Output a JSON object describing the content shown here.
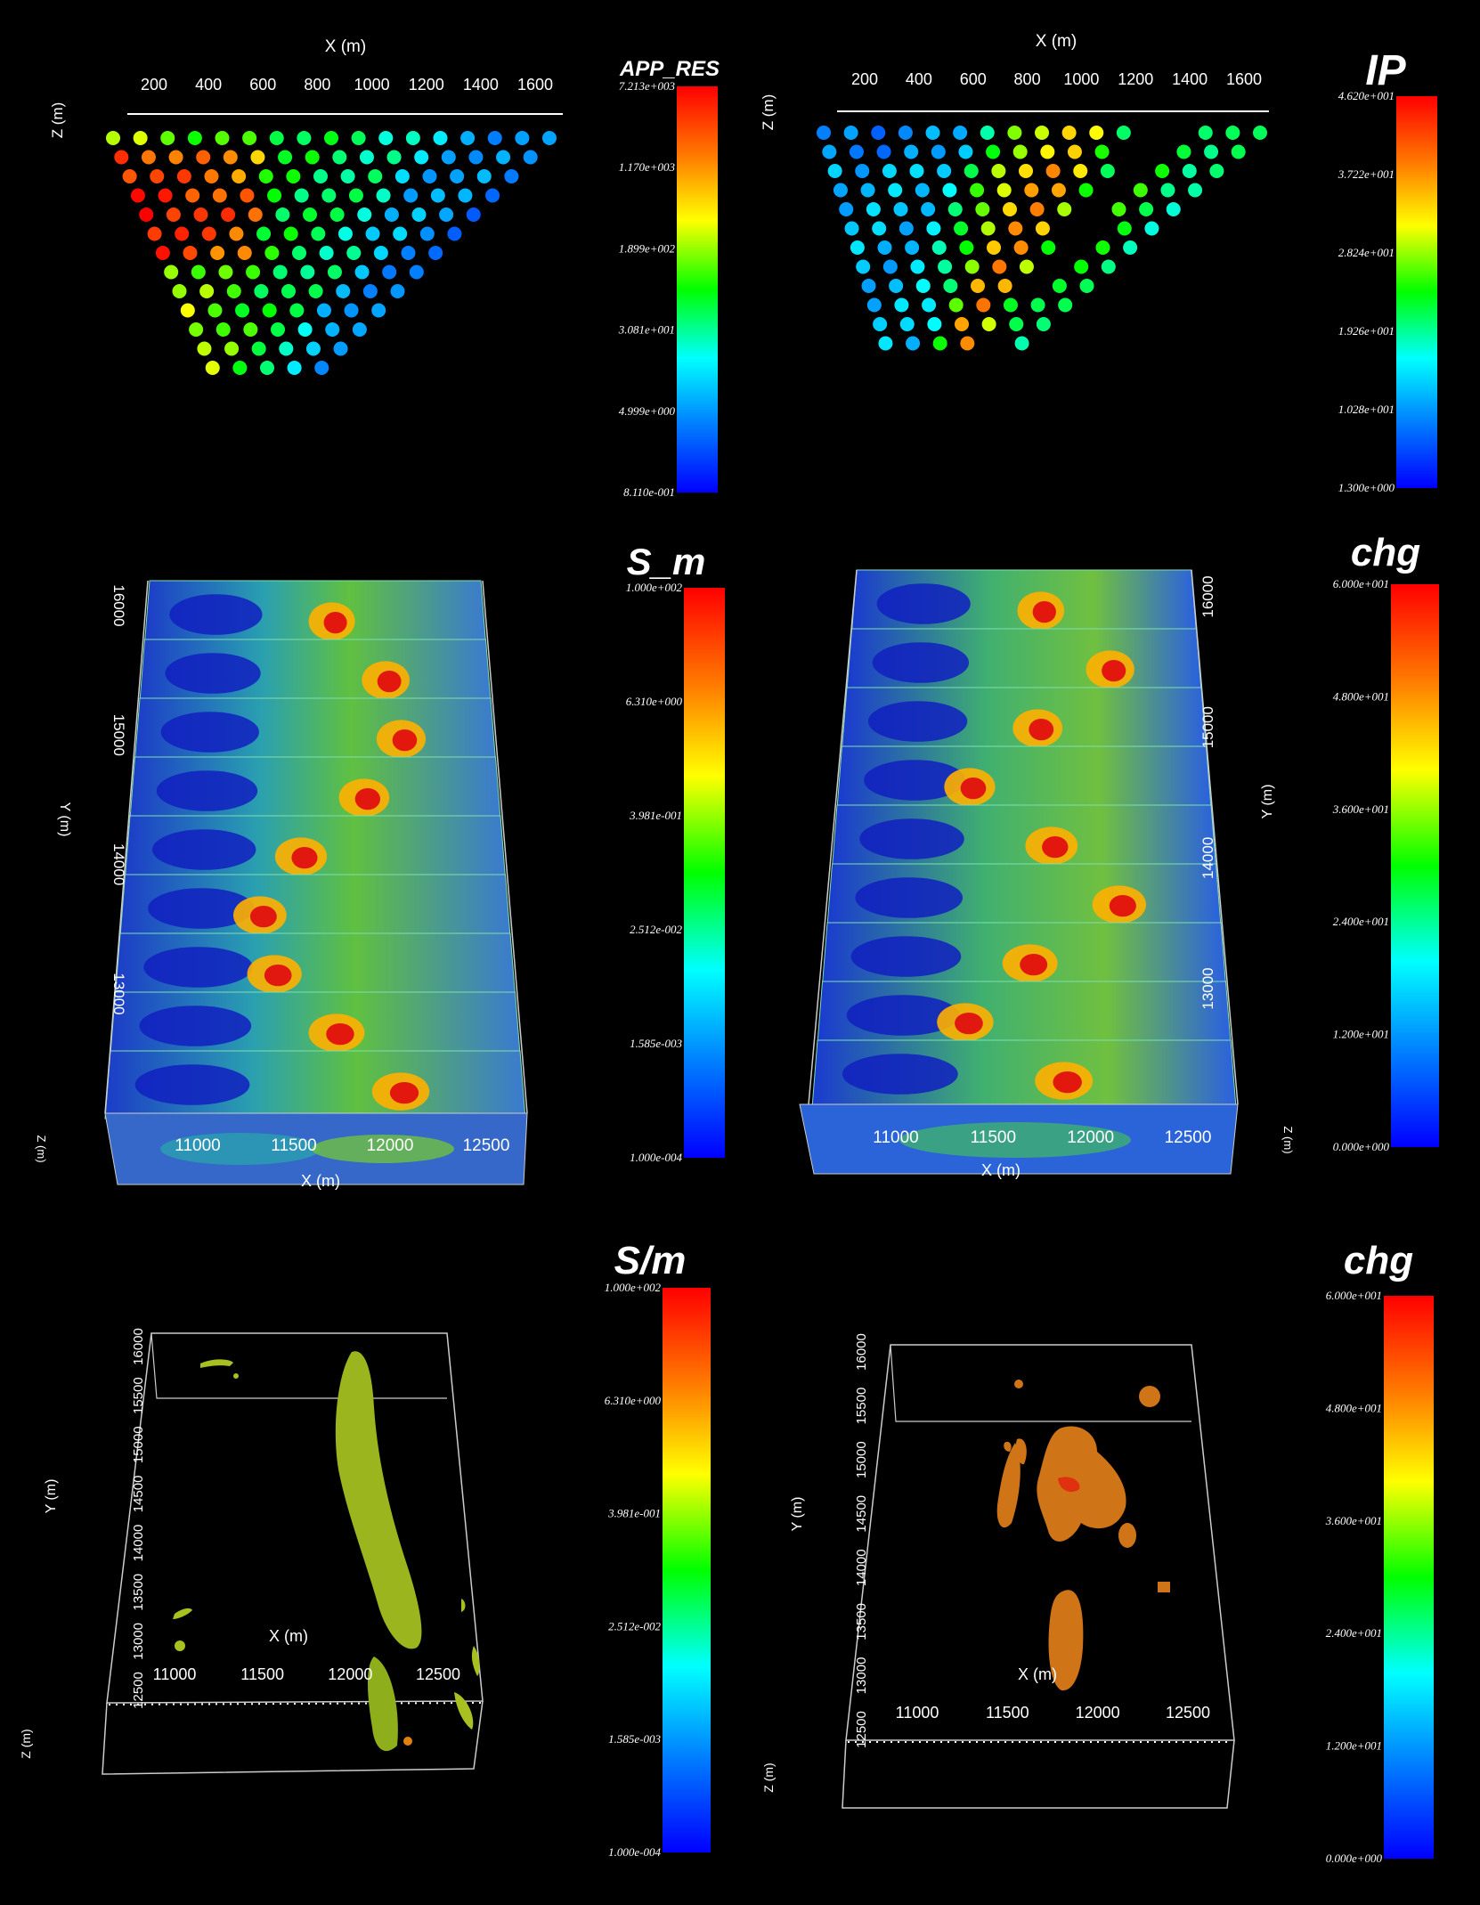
{
  "chart_data": [
    {
      "type": "scatter",
      "subtype": "pseudosection",
      "xlabel": "X (m)",
      "ylabel": "Z (m)",
      "x_ticks": [
        200,
        400,
        600,
        800,
        1000,
        1200,
        1400,
        1600
      ],
      "colorbar": {
        "title": "APP_RES",
        "ticks": [
          "7.213e+003",
          "1.170e+003",
          "1.899e+002",
          "3.081e+001",
          "4.999e+000",
          "8.110e-001"
        ]
      },
      "note": "triangular pseudosection of apparent resistivity; colour = log value"
    },
    {
      "type": "scatter",
      "subtype": "pseudosection",
      "xlabel": "X (m)",
      "ylabel": "Z (m)",
      "x_ticks": [
        200,
        400,
        600,
        800,
        1000,
        1200,
        1400,
        1600
      ],
      "colorbar": {
        "title": "IP",
        "ticks": [
          "4.620e+001",
          "3.722e+001",
          "2.824e+001",
          "1.926e+001",
          "1.028e+001",
          "1.300e+000"
        ]
      }
    },
    {
      "type": "heatmap",
      "subtype": "3d-slices",
      "xlabel": "X (m)",
      "ylabel": "Y (m)",
      "zlabel": "Z (m)",
      "x_ticks": [
        "11000",
        "11500",
        "12000",
        "12500"
      ],
      "y_ticks": [
        "13000",
        "14000",
        "15000",
        "16000"
      ],
      "colorbar": {
        "title": "S_m",
        "ticks": [
          "1.000e+002",
          "6.310e+000",
          "3.981e-001",
          "2.512e-002",
          "1.585e-003",
          "1.000e-004"
        ]
      }
    },
    {
      "type": "heatmap",
      "subtype": "3d-slices",
      "xlabel": "X (m)",
      "ylabel": "Y (m)",
      "zlabel": "Z (m)",
      "x_ticks": [
        "11000",
        "11500",
        "12000",
        "12500"
      ],
      "y_ticks": [
        "13000",
        "14000",
        "15000",
        "16000"
      ],
      "colorbar": {
        "title": "chg",
        "ticks": [
          "6.000e+001",
          "4.800e+001",
          "3.600e+001",
          "2.400e+001",
          "1.200e+001",
          "0.000e+000"
        ]
      }
    },
    {
      "type": "scatter",
      "subtype": "3d-isosurface",
      "xlabel": "X (m)",
      "ylabel": "Y (m)",
      "zlabel": "Z (m)",
      "x_ticks": [
        "11000",
        "11500",
        "12000",
        "12500"
      ],
      "y_ticks": [
        "12500",
        "13000",
        "13500",
        "14000",
        "14500",
        "15000",
        "15500",
        "16000"
      ],
      "colorbar": {
        "title": "S/m",
        "ticks": [
          "1.000e+002",
          "6.310e+000",
          "3.981e-001",
          "2.512e-002",
          "1.585e-003",
          "1.000e-004"
        ]
      }
    },
    {
      "type": "scatter",
      "subtype": "3d-isosurface",
      "xlabel": "X (m)",
      "ylabel": "Y (m)",
      "zlabel": "Z (m)",
      "x_ticks": [
        "11000",
        "11500",
        "12000",
        "12500"
      ],
      "y_ticks": [
        "12500",
        "13000",
        "13500",
        "14000",
        "14500",
        "15000",
        "15500",
        "16000"
      ],
      "colorbar": {
        "title": "chg",
        "ticks": [
          "6.000e+001",
          "4.800e+001",
          "3.600e+001",
          "2.400e+001",
          "1.200e+001",
          "0.000e+000"
        ]
      }
    }
  ],
  "colors": {
    "background": "#000000",
    "outline": "#cfcfcf"
  }
}
